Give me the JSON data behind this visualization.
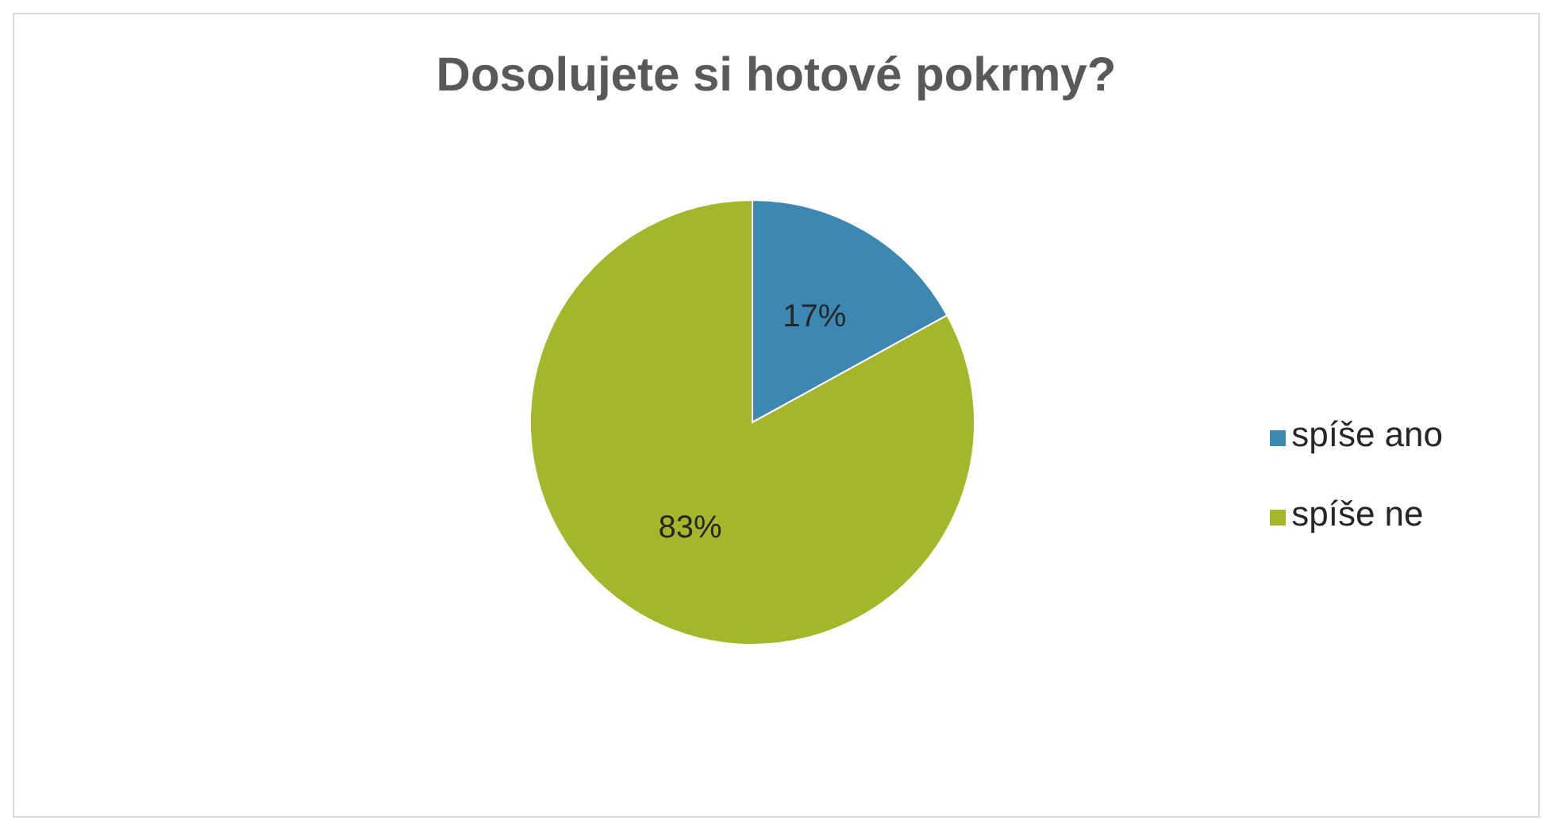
{
  "chart_data": {
    "type": "pie",
    "title": "Dosolujete si hotové pokrmy?",
    "categories": [
      "spíše ano",
      "spíše ne"
    ],
    "values": [
      17,
      83
    ],
    "colors": [
      "#3d87b3",
      "#a5b62a"
    ],
    "value_labels": [
      "17%",
      "83%"
    ],
    "legend": "right"
  }
}
